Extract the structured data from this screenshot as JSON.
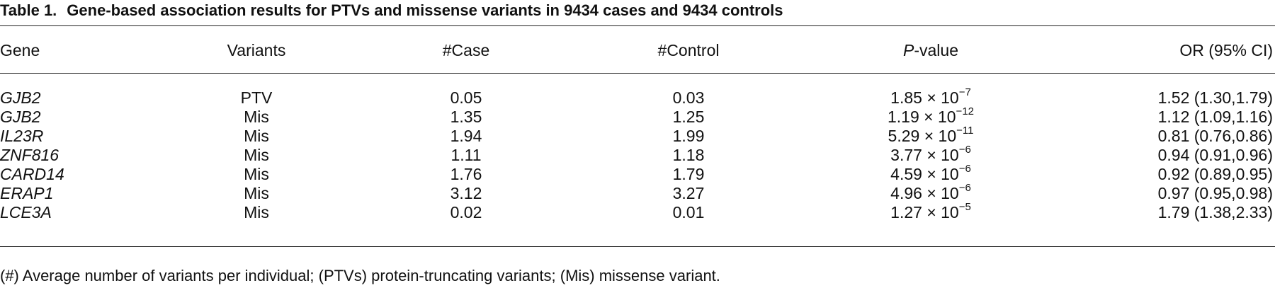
{
  "title": {
    "label": "Table 1.",
    "text": "Gene-based association results for PTVs and missense variants in 9434 cases and 9434 controls"
  },
  "table": {
    "header": [
      "Gene",
      "Variants",
      "#Case",
      "#Control",
      {
        "italic": "P",
        "rest": "-value"
      },
      "OR (95% CI)"
    ],
    "rows": [
      [
        "GJB2",
        "PTV",
        "0.05",
        "0.03",
        {
          "base": "1.85 × 10",
          "exponent": "−7"
        },
        "1.52 (1.30,1.79)"
      ],
      [
        "GJB2",
        "Mis",
        "1.35",
        "1.25",
        {
          "base": "1.19 × 10",
          "exponent": "−12"
        },
        "1.12 (1.09,1.16)"
      ],
      [
        "IL23R",
        "Mis",
        "1.94",
        "1.99",
        {
          "base": "5.29 × 10",
          "exponent": "−11"
        },
        "0.81 (0.76,0.86)"
      ],
      [
        "ZNF816",
        "Mis",
        "1.11",
        "1.18",
        {
          "base": "3.77 × 10",
          "exponent": "−6"
        },
        "0.94 (0.91,0.96)"
      ],
      [
        "CARD14",
        "Mis",
        "1.76",
        "1.79",
        {
          "base": "4.59 × 10",
          "exponent": "−6"
        },
        "0.92 (0.89,0.95)"
      ],
      [
        "ERAP1",
        "Mis",
        "3.12",
        "3.27",
        {
          "base": "4.96 × 10",
          "exponent": "−6"
        },
        "0.97 (0.95,0.98)"
      ],
      [
        "LCE3A",
        "Mis",
        "0.02",
        "0.01",
        {
          "base": "1.27 × 10",
          "exponent": "−5"
        },
        "1.79 (1.38,2.33)"
      ]
    ]
  },
  "footnote": "(#) Average number of variants per individual; (PTVs) protein-truncating variants; (Mis) missense variant."
}
